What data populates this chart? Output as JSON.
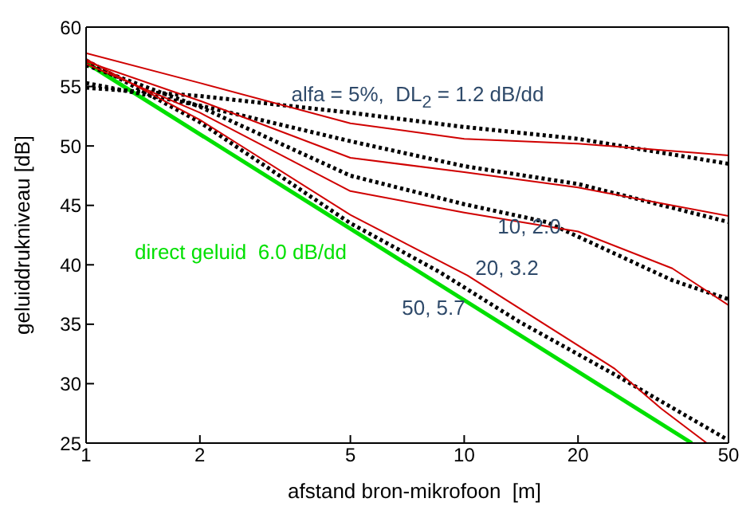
{
  "chart_data": {
    "type": "line",
    "xlabel": "afstand bron-mikrofoon  [m]",
    "ylabel": "geluiddrukniveau  [dB]",
    "log": "x",
    "xlim": [
      1,
      50
    ],
    "xticks": [
      1,
      2,
      5,
      10,
      20,
      50
    ],
    "ylim": [
      25,
      60
    ],
    "yticks": [
      25,
      30,
      35,
      40,
      45,
      50,
      55,
      60
    ],
    "marker": "none",
    "series": [
      {
        "color": "#00e000",
        "x": [
          1,
          40
        ],
        "values": [
          57,
          25
        ]
      },
      {
        "color": "#000000",
        "line_style": "dotted",
        "x": [
          1,
          2,
          5,
          10,
          20,
          50
        ],
        "values": [
          54.9,
          54.2,
          52.8,
          51.6,
          50.6,
          48.5
        ]
      },
      {
        "color": "#000000",
        "line_style": "dotted",
        "x": [
          1,
          2,
          5,
          10,
          20,
          50
        ],
        "values": [
          55.3,
          53.4,
          50.4,
          48.3,
          46.8,
          43.6
        ]
      },
      {
        "color": "#000000",
        "line_style": "dotted",
        "x": [
          1,
          2,
          5,
          10,
          16.5,
          35.5,
          50
        ],
        "values": [
          56.8,
          53.3,
          47.5,
          45.1,
          43.6,
          38.7,
          37.1
        ]
      },
      {
        "color": "#000000",
        "line_style": "dotted",
        "x": [
          1,
          2,
          5,
          8.6,
          14,
          24.9,
          49.6
        ],
        "values": [
          57.2,
          52,
          43.5,
          39.4,
          35.2,
          30.8,
          25.3
        ]
      },
      {
        "color": "#d00000",
        "x": [
          1,
          2,
          5,
          10,
          20,
          50
        ],
        "values": [
          57.8,
          55.3,
          51.9,
          50.6,
          50.2,
          49.2
        ]
      },
      {
        "color": "#d00000",
        "x": [
          1,
          2,
          5,
          10,
          20,
          50
        ],
        "values": [
          57.1,
          53.8,
          49,
          47.8,
          46.5,
          44.1
        ]
      },
      {
        "color": "#d00000",
        "x": [
          1,
          2,
          5,
          10,
          20,
          35.5,
          50
        ],
        "values": [
          56.9,
          52.8,
          46.2,
          44.4,
          42.8,
          39.7,
          36.6
        ]
      },
      {
        "color": "#d00000",
        "x": [
          1,
          2,
          5,
          10.2,
          24.9,
          33.2,
          43.8
        ],
        "values": [
          57.3,
          52.2,
          44.2,
          39.1,
          31.3,
          27.9,
          25
        ]
      }
    ],
    "annotations": [
      "alfa = 5%,  DL$_{2}$ = 1.2 dB/dd",
      "10, 2.0",
      "20, 3.2",
      "50, 5.7",
      "direct geluid  6.0 dB/dd"
    ]
  }
}
